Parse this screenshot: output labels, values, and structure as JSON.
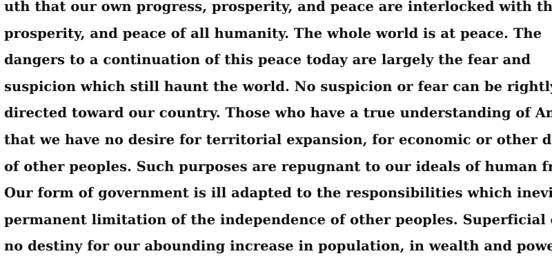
{
  "document": {
    "lines": [
      "uth that our own progress, prosperity, and peace are interlocked with the progress,",
      "prosperity, and peace of all humanity. The whole world is at peace. The",
      "dangers to a continuation of this peace today are largely the fear and",
      "suspicion which still haunt the world. No suspicion or fear can be rightly",
      "directed toward our country. Those who have a true understanding of America",
      "that we have no desire for territorial expansion, for economic or other domination",
      "of other peoples. Such purposes are repugnant to our ideals of human freedom.",
      "Our form of government is ill adapted to the responsibilities which inevitably",
      "permanent limitation of the independence of other peoples. Superficial observers",
      "no destiny for our abounding increase in population, in wealth and power except"
    ]
  }
}
